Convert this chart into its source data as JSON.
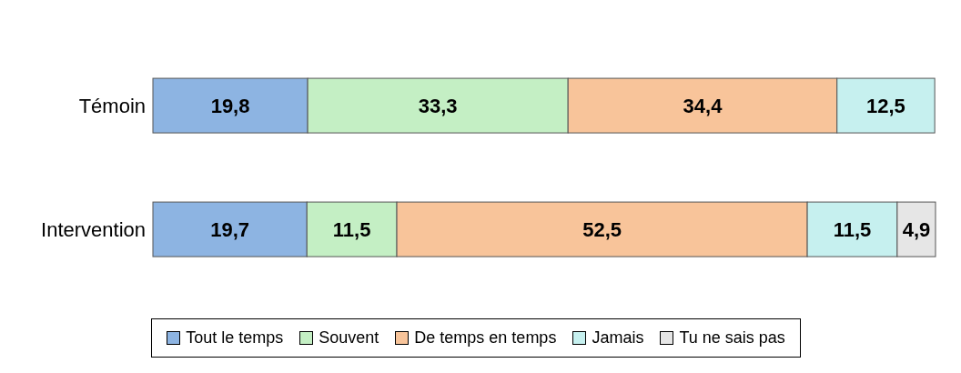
{
  "chart_data": {
    "type": "bar",
    "orientation": "horizontal",
    "stacked": true,
    "categories": [
      "Témoin",
      "Intervention"
    ],
    "tick_labels": "y",
    "legend": "bottom",
    "series": [
      {
        "name": "Tout le temps",
        "color": "#8db4e2",
        "values": [
          19.8,
          19.7
        ],
        "value_labels": [
          "19,8",
          "19,7"
        ]
      },
      {
        "name": "Souvent",
        "color": "#c4efc4",
        "values": [
          33.3,
          11.5
        ],
        "value_labels": [
          "33,3",
          "11,5"
        ]
      },
      {
        "name": "De temps en temps",
        "color": "#f8c49a",
        "values": [
          34.4,
          52.5
        ],
        "value_labels": [
          "34,4",
          "52,5"
        ]
      },
      {
        "name": "Jamais",
        "color": "#c6f0ef",
        "values": [
          12.5,
          11.5
        ],
        "value_labels": [
          "12,5",
          "11,5"
        ]
      },
      {
        "name": "Tu ne sais pas",
        "color": "#e6e6e6",
        "values": [
          null,
          4.9
        ],
        "value_labels": [
          null,
          "4,9"
        ]
      }
    ]
  }
}
